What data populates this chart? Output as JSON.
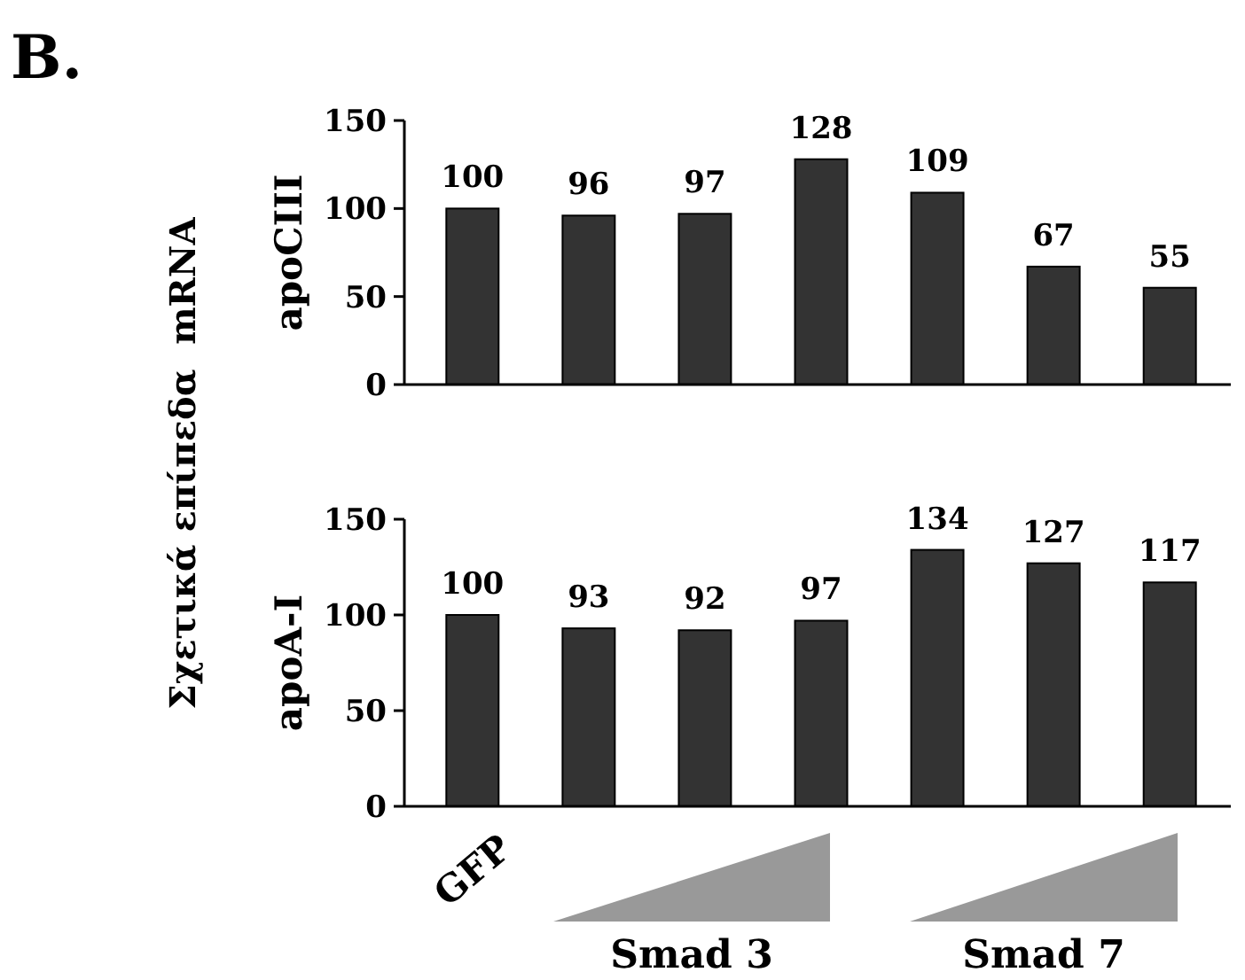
{
  "chart_data": [
    {
      "type": "bar",
      "title": "B.",
      "ylabel": "apoCIII",
      "annotations": [
        "Σχετικά επίπεδα  mRNA"
      ],
      "categories": [
        null,
        null,
        null,
        null,
        null,
        null,
        null
      ],
      "values": [
        100,
        96,
        97,
        128,
        109,
        67,
        55
      ],
      "color": "#333333",
      "ylim": [
        0,
        150
      ],
      "yticks": [
        0,
        50,
        100,
        150
      ],
      "data_labels": true,
      "tick_labels": "y",
      "grid": false
    },
    {
      "type": "bar",
      "ylabel": "apoA-I",
      "annotations": [
        "Smad 3",
        "Smad 7"
      ],
      "categories": [
        "GFP",
        null,
        null,
        null,
        null,
        null,
        null
      ],
      "values": [
        100,
        93,
        92,
        97,
        134,
        127,
        117
      ],
      "color": "#333333",
      "ylim": [
        0,
        150
      ],
      "yticks": [
        0,
        50,
        100,
        150
      ],
      "data_labels": true,
      "grid": false
    }
  ]
}
